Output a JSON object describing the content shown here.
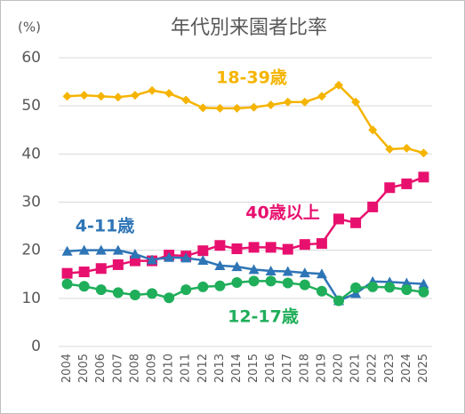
{
  "chart_data": {
    "type": "line",
    "title": "年代別来園者比率",
    "y_label": "(%)",
    "categories": [
      "2004",
      "2005",
      "2006",
      "2007",
      "2008",
      "2009",
      "2010",
      "2011",
      "2012",
      "2013",
      "2014",
      "2015",
      "2016",
      "2017",
      "2018",
      "2019",
      "2020",
      "2021",
      "2022",
      "2023",
      "2024",
      "2025"
    ],
    "ylim": [
      0,
      60
    ],
    "yticks": [
      0,
      10,
      20,
      30,
      40,
      50,
      60
    ],
    "grid": true,
    "series": [
      {
        "name": "18-39歳",
        "color": "#f5b400",
        "marker": "diamond",
        "values": [
          52,
          52.2,
          52,
          51.8,
          52.2,
          53.2,
          52.6,
          51.2,
          49.6,
          49.5,
          49.5,
          49.7,
          50.2,
          50.8,
          50.8,
          52,
          54.3,
          50.8,
          45,
          41,
          41.2,
          40.2
        ]
      },
      {
        "name": "40歳以上",
        "color": "#e8106e",
        "marker": "square",
        "values": [
          15.2,
          15.5,
          16.2,
          17,
          17.8,
          17.8,
          19,
          18.8,
          19.9,
          21,
          20.3,
          20.6,
          20.6,
          20.2,
          21.2,
          21.4,
          26.5,
          25.7,
          29,
          33,
          33.8,
          35.2
        ]
      },
      {
        "name": "4-11歳",
        "color": "#2e75b6",
        "marker": "triangle",
        "values": [
          19.8,
          20,
          20,
          20,
          19.2,
          18,
          18.5,
          18.4,
          17.9,
          16.8,
          16.6,
          16,
          15.7,
          15.6,
          15.3,
          15.1,
          9.5,
          11,
          13.5,
          13.4,
          13.2,
          13
        ]
      },
      {
        "name": "12-17歳",
        "color": "#1fae5a",
        "marker": "circle",
        "values": [
          13,
          12.5,
          11.8,
          11.2,
          10.7,
          11,
          10.1,
          11.8,
          12.4,
          12.6,
          13.3,
          13.6,
          13.6,
          13.2,
          12.8,
          11.5,
          9.5,
          12.2,
          12.4,
          12.3,
          11.8,
          11.3
        ]
      }
    ]
  }
}
